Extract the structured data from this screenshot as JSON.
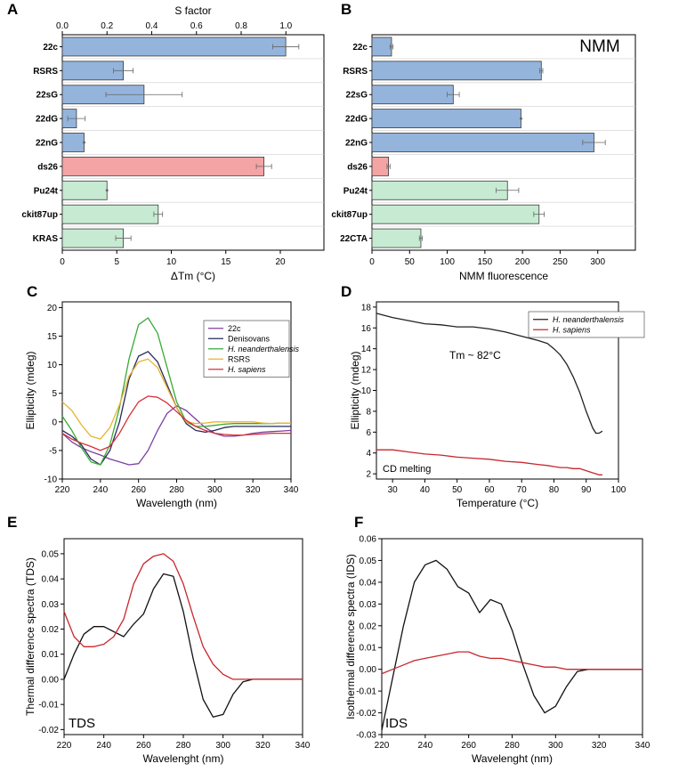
{
  "panel_labels": [
    "A",
    "B",
    "C",
    "D",
    "E",
    "F"
  ],
  "colors": {
    "blue": "#94b4dc",
    "red": "#f4a4a4",
    "green": "#c7ebd2",
    "bar_edge": "#3a3a3a",
    "err": "#666666"
  },
  "chart_data": [
    {
      "panel": "A",
      "type": "bar",
      "orientation": "horizontal",
      "xlabel": "ΔTm (°C)",
      "x2label": "S factor",
      "xlim": [
        0,
        24
      ],
      "xticks": [
        0,
        5,
        10,
        15,
        20
      ],
      "x2lim": [
        0,
        1.17
      ],
      "x2ticks": [
        0.0,
        0.2,
        0.4,
        0.6,
        0.8,
        1.0
      ],
      "x2ticklabels": [
        "0.0",
        "0.2",
        "0.4",
        "0.6",
        "0.8",
        "1.0"
      ],
      "categories": [
        "22c",
        "RSRS",
        "22sG",
        "22dG",
        "22nG",
        "ds26",
        "Pu24t",
        "ckit87up",
        "KRAS"
      ],
      "values": [
        20.5,
        5.6,
        7.5,
        1.3,
        2.0,
        18.5,
        4.1,
        8.8,
        5.6
      ],
      "errors": [
        1.2,
        0.9,
        3.5,
        0.8,
        0,
        0.7,
        0,
        0.4,
        0.7
      ],
      "bar_colors": [
        "blue",
        "blue",
        "blue",
        "blue",
        "blue",
        "red",
        "green",
        "green",
        "green"
      ]
    },
    {
      "panel": "B",
      "type": "bar",
      "orientation": "horizontal",
      "title": "NMM",
      "xlabel": "NMM fluorescence",
      "xlim": [
        0,
        350
      ],
      "xticks": [
        0,
        50,
        100,
        150,
        200,
        250,
        300
      ],
      "categories": [
        "22c",
        "RSRS",
        "22sG",
        "22dG",
        "22nG",
        "ds26",
        "Pu24t",
        "ckit87up",
        "22CTA"
      ],
      "values": [
        26,
        225,
        108,
        198,
        295,
        22,
        180,
        222,
        65
      ],
      "errors": [
        2,
        2,
        8,
        0,
        15,
        2,
        15,
        7,
        2
      ],
      "bar_colors": [
        "blue",
        "blue",
        "blue",
        "blue",
        "blue",
        "red",
        "green",
        "green",
        "green"
      ]
    },
    {
      "panel": "C",
      "type": "line",
      "xlabel": "Wavelength (nm)",
      "ylabel": "Ellipticity (mdeg)",
      "xlim": [
        220,
        340
      ],
      "ylim": [
        -10,
        21
      ],
      "xticks": [
        220,
        240,
        260,
        280,
        300,
        320,
        340
      ],
      "yticks": [
        -10,
        -5,
        0,
        5,
        10,
        15,
        20
      ],
      "x": [
        220,
        225,
        230,
        235,
        240,
        245,
        250,
        255,
        260,
        265,
        270,
        275,
        280,
        285,
        290,
        295,
        300,
        305,
        310,
        315,
        320,
        325,
        330,
        335,
        340
      ],
      "series": [
        {
          "name": "22c",
          "italic": false,
          "color": "#7b3fa0",
          "values": [
            -2,
            -3.5,
            -4.5,
            -5.2,
            -5.8,
            -6.5,
            -7,
            -7.5,
            -7.3,
            -5,
            -1.5,
            1.5,
            2.8,
            2,
            0.5,
            -1,
            -2,
            -2.5,
            -2.5,
            -2.3,
            -2,
            -1.8,
            -1.7,
            -1.6,
            -1.5
          ]
        },
        {
          "name": "Denisovans",
          "italic": false,
          "color": "#2a2a5a",
          "values": [
            -1.5,
            -2.5,
            -4,
            -6.5,
            -7.5,
            -5,
            0,
            7.5,
            11.5,
            12.3,
            10.5,
            6.5,
            2.5,
            -0.3,
            -1.5,
            -1.8,
            -1.5,
            -1,
            -0.8,
            -0.8,
            -0.8,
            -0.8,
            -0.8,
            -0.8,
            -0.8
          ]
        },
        {
          "name": "H. neanderthalensis",
          "italic": true,
          "color": "#3aaa35",
          "values": [
            1,
            -1.5,
            -4.5,
            -7,
            -7.5,
            -4,
            2.5,
            11,
            17,
            18.2,
            15.5,
            9.5,
            3.5,
            0,
            -0.8,
            -0.8,
            -0.6,
            -0.4,
            -0.3,
            -0.3,
            -0.3,
            -0.3,
            -0.3,
            -0.2,
            -0.2
          ]
        },
        {
          "name": "RSRS",
          "italic": false,
          "color": "#e7b430",
          "values": [
            3.5,
            2,
            -0.5,
            -2.5,
            -3,
            -1,
            3,
            8,
            10.5,
            11,
            9.5,
            6,
            2.5,
            0,
            -0.3,
            -0.2,
            0,
            0,
            0,
            0,
            0,
            -0.2,
            -0.3,
            -0.2,
            -0.2
          ]
        },
        {
          "name": "H. sapiens",
          "italic": true,
          "color": "#d6303a",
          "values": [
            -2,
            -3,
            -3.7,
            -4.3,
            -5,
            -4.3,
            -2,
            1,
            3.5,
            4.5,
            4.3,
            3.3,
            1.8,
            0.3,
            -0.8,
            -1.5,
            -2,
            -2.2,
            -2.3,
            -2.3,
            -2.2,
            -2.1,
            -2,
            -2,
            -2
          ]
        }
      ]
    },
    {
      "panel": "D",
      "type": "line",
      "xlabel": "Temperature (°C)",
      "ylabel": "Ellipticity (mdeg)",
      "xlim": [
        25,
        100
      ],
      "ylim": [
        1.5,
        18.5
      ],
      "xticks": [
        30,
        40,
        50,
        60,
        70,
        80,
        90,
        100
      ],
      "yticks": [
        2,
        4,
        6,
        8,
        10,
        12,
        14,
        16,
        18
      ],
      "annotations": [
        "Tm ~ 82°C",
        "CD melting"
      ],
      "x": [
        25,
        30,
        35,
        40,
        45,
        50,
        55,
        60,
        65,
        70,
        75,
        78,
        80,
        82,
        84,
        86,
        88,
        90,
        92,
        93,
        94,
        95
      ],
      "series": [
        {
          "name": "H. neanderthalensis",
          "italic": true,
          "color": "#222222",
          "values": [
            17.4,
            17,
            16.7,
            16.4,
            16.3,
            16.1,
            16.1,
            15.9,
            15.6,
            15.2,
            14.8,
            14.5,
            14,
            13.4,
            12.5,
            11.3,
            9.8,
            8,
            6.4,
            5.9,
            5.9,
            6.1
          ]
        },
        {
          "name": "H. sapiens",
          "italic": true,
          "color": "#c8262c",
          "values": [
            4.3,
            4.3,
            4.1,
            3.9,
            3.8,
            3.6,
            3.5,
            3.4,
            3.2,
            3.1,
            2.9,
            2.8,
            2.7,
            2.6,
            2.6,
            2.5,
            2.5,
            2.3,
            2.1,
            2,
            1.9,
            1.9
          ]
        }
      ]
    },
    {
      "panel": "E",
      "type": "line",
      "xlabel": "Wavelenght (nm)",
      "ylabel": "Thermal difference spectra (TDS)",
      "xlim": [
        220,
        340
      ],
      "ylim": [
        -0.022,
        0.056
      ],
      "xticks": [
        220,
        240,
        260,
        280,
        300,
        320,
        340
      ],
      "yticks": [
        -0.02,
        -0.01,
        0.0,
        0.01,
        0.02,
        0.03,
        0.04,
        0.05
      ],
      "yticklabels": [
        "-0.02",
        "-0.01",
        "0.00",
        "0.01",
        "0.02",
        "0.03",
        "0.04",
        "0.05"
      ],
      "annotations": [
        "TDS"
      ],
      "x": [
        220,
        225,
        230,
        235,
        240,
        245,
        250,
        255,
        260,
        265,
        270,
        275,
        280,
        285,
        290,
        295,
        300,
        305,
        310,
        315,
        320,
        325,
        330,
        335,
        340
      ],
      "series": [
        {
          "name": "black",
          "color": "#111111",
          "values": [
            0,
            0.01,
            0.018,
            0.021,
            0.021,
            0.019,
            0.017,
            0.022,
            0.026,
            0.036,
            0.042,
            0.041,
            0.027,
            0.008,
            -0.008,
            -0.015,
            -0.014,
            -0.006,
            -0.001,
            0,
            0,
            0,
            0,
            0,
            0
          ]
        },
        {
          "name": "red",
          "color": "#c8262c",
          "values": [
            0.027,
            0.017,
            0.013,
            0.013,
            0.014,
            0.017,
            0.024,
            0.038,
            0.046,
            0.049,
            0.05,
            0.047,
            0.038,
            0.025,
            0.013,
            0.006,
            0.002,
            0,
            0,
            0,
            0,
            0,
            0,
            0,
            0
          ]
        }
      ]
    },
    {
      "panel": "F",
      "type": "line",
      "xlabel": "Wavelenght (nm)",
      "ylabel": "Isothermal difference spectra (IDS)",
      "xlim": [
        220,
        340
      ],
      "ylim": [
        -0.03,
        0.06
      ],
      "xticks": [
        220,
        240,
        260,
        280,
        300,
        320,
        340
      ],
      "yticks": [
        -0.03,
        -0.02,
        -0.01,
        0.0,
        0.01,
        0.02,
        0.03,
        0.04,
        0.05,
        0.06
      ],
      "yticklabels": [
        "-0.03",
        "-0.02",
        "-0.01",
        "0.00",
        "0.01",
        "0.02",
        "0.03",
        "0.04",
        "0.05",
        "0.06"
      ],
      "annotations": [
        "IDS"
      ],
      "x": [
        220,
        225,
        230,
        235,
        240,
        245,
        250,
        255,
        260,
        265,
        270,
        275,
        280,
        285,
        290,
        295,
        300,
        305,
        310,
        315,
        320,
        325,
        330,
        335,
        340
      ],
      "series": [
        {
          "name": "black",
          "color": "#111111",
          "values": [
            -0.028,
            -0.004,
            0.02,
            0.04,
            0.048,
            0.05,
            0.046,
            0.038,
            0.035,
            0.026,
            0.032,
            0.03,
            0.018,
            0.002,
            -0.012,
            -0.02,
            -0.017,
            -0.008,
            -0.001,
            0,
            0,
            0,
            0,
            0,
            0
          ]
        },
        {
          "name": "red",
          "color": "#c8262c",
          "values": [
            -0.002,
            0,
            0.002,
            0.004,
            0.005,
            0.006,
            0.007,
            0.008,
            0.008,
            0.006,
            0.005,
            0.005,
            0.004,
            0.003,
            0.002,
            0.001,
            0.001,
            0,
            0,
            0,
            0,
            0,
            0,
            0,
            0
          ]
        }
      ]
    }
  ]
}
